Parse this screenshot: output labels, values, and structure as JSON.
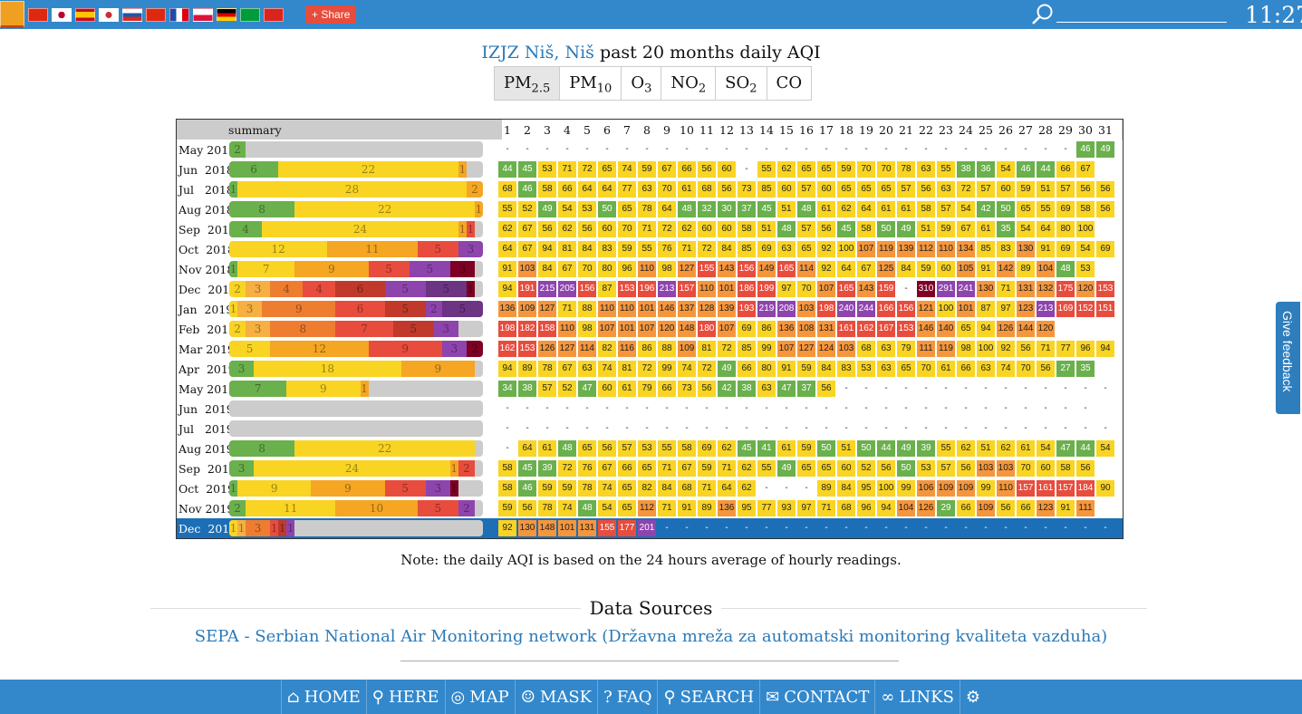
{
  "header": {
    "flags": [
      "home-flag",
      "china-flag",
      "japan-flag",
      "spain-flag",
      "korea-flag",
      "russia-flag",
      "hongkong-flag",
      "france-flag",
      "poland-flag",
      "germany-flag",
      "brazil-flag",
      "vietnam-flag"
    ],
    "share_label": "Share",
    "clock": "11:27"
  },
  "title": {
    "station": "IZJZ Niš, Niš",
    "suffix": " past 20 months daily AQI"
  },
  "pollutants": [
    {
      "base": "PM",
      "sub": "2.5"
    },
    {
      "base": "PM",
      "sub": "10"
    },
    {
      "base": "O",
      "sub": "3"
    },
    {
      "base": "NO",
      "sub": "2"
    },
    {
      "base": "SO",
      "sub": "2"
    },
    {
      "base": "CO",
      "sub": ""
    }
  ],
  "grid": {
    "summary_label": "summary",
    "days": [
      "1",
      "2",
      "3",
      "4",
      "5",
      "6",
      "7",
      "8",
      "9",
      "10",
      "11",
      "12",
      "13",
      "14",
      "15",
      "16",
      "17",
      "18",
      "19",
      "20",
      "21",
      "22",
      "23",
      "24",
      "25",
      "26",
      "27",
      "28",
      "29",
      "30",
      "31"
    ]
  },
  "colors": {
    "good": "#6ab04c",
    "moderate": "#f9d423",
    "usg": "#f5a623",
    "unhealthy": "#e84c3d",
    "very": "#8e44ad",
    "hazardous": "#7e0023"
  },
  "months": [
    {
      "label": "May 2018",
      "summary": [
        2
      ],
      "days": "- - - - - - - - - - - - - - - - - - - - - - - - - - - - - 46 49"
    },
    {
      "label": "Jun  2018",
      "summary": [
        6,
        22,
        1
      ],
      "days": "44 45 53 71 72 65 74 59 67 66 56 60 - 55 62 65 65 59 70 70 78 63 55 38 36 54 46 44 66 67"
    },
    {
      "label": "Jul   2018",
      "summary": [
        1,
        28,
        2
      ],
      "days": "68 46 58 66 64 64 77 63 70 61 68 56 73 85 60 57 60 65 65 65 57 56 63 72 57 60 59 51 57 56 56"
    },
    {
      "label": "Aug 2018",
      "summary": [
        8,
        22,
        1
      ],
      "days": "55 52 49 54 53 50 65 78 64 48 32 30 37 45 51 48 61 62 64 61 61 58 57 54 42 50 65 55 69 58 56"
    },
    {
      "label": "Sep  2018",
      "summary": [
        4,
        24,
        1,
        1
      ],
      "days": "62 67 56 62 56 60 70 71 72 62 60 60 58 51 48 57 56 45 58 50 49 51 59 67 61 35 54 64 80 100"
    },
    {
      "label": "Oct  2018",
      "summary": [
        0,
        12,
        11,
        5,
        3
      ],
      "days": "64 67 94 81 84 83 59 55 76 71 72 84 85 69 63 65 92 100 107 119 139 112 110 134 85 83 130 91 69 54 69"
    },
    {
      "label": "Nov 2018",
      "summary": [
        1,
        7,
        9,
        5,
        5,
        3
      ],
      "days": "91 103 84 67 70 80 96 110 98 127 155 143 156 149 165 114 92 64 67 125 84 59 60 105 91 142 89 104 48 53"
    },
    {
      "label": "Dec  2018",
      "summary": [
        0,
        2,
        3,
        4,
        4,
        6,
        5,
        5,
        1
      ],
      "days": "94 191 215 205 156 87 153 196 213 157 110 101 186 199 97 70 107 165 143 159 - 310 291 241 130 71 131 132 175 120 153"
    },
    {
      "label": "Jan  2019",
      "summary": [
        0,
        1,
        3,
        9,
        6,
        5,
        2,
        5
      ],
      "days": "136 109 127 71 88 110 110 101 146 137 128 139 193 219 208 103 198 240 244 166 156 121 100 101 87 97 123 213 169 152 151"
    },
    {
      "label": "Feb  2019",
      "summary": [
        0,
        2,
        3,
        8,
        7,
        5,
        3
      ],
      "days": "198 182 158 110 98 107 101 107 120 148 180 107 69 86 136 108 131 161 162 167 153 146 140 65 94 126 144 120"
    },
    {
      "label": "Mar 2019",
      "summary": [
        0,
        5,
        12,
        9,
        3,
        2
      ],
      "days": "162 153 126 127 114 82 116 86 88 109 81 72 85 99 107 127 124 103 68 63 79 111 119 98 100 92 56 71 77 96 94"
    },
    {
      "label": "Apr  2019",
      "summary": [
        3,
        18,
        9
      ],
      "days": "94 89 78 67 63 74 81 72 99 74 72 49 66 80 91 59 84 83 53 63 65 70 61 66 63 74 70 56 27 35"
    },
    {
      "label": "May 2019",
      "summary": [
        7,
        9,
        1
      ],
      "days": "34 38 57 52 47 60 61 79 66 73 56 42 38 63 47 37 56 - - - - - - - - - - - - - -"
    },
    {
      "label": "Jun  2019",
      "summary": [],
      "days": "- - - - - - - - - - - - - - - - - - - - - - - - - - - - - -"
    },
    {
      "label": "Jul   2019",
      "summary": [],
      "days": "- - - - - - - - - - - - - - - - - - - - - - - - - - - - - - -"
    },
    {
      "label": "Aug 2019",
      "summary": [
        8,
        22
      ],
      "days": "- 64 61 48 65 56 57 53 55 58 69 62 45 41 61 59 50 51 50 44 49 39 55 62 51 62 61 54 47 44 54"
    },
    {
      "label": "Sep  2019",
      "summary": [
        3,
        24,
        1,
        2
      ],
      "days": "58 45 39 72 76 67 66 65 71 67 59 71 62 55 49 65 65 60 52 56 50 53 57 56 103 103 70 60 58 56"
    },
    {
      "label": "Oct  2019",
      "summary": [
        1,
        9,
        9,
        5,
        3,
        1
      ],
      "days": "58 46 59 59 78 74 65 82 84 68 71 64 62 - - - 89 84 95 100 99 106 109 109 99 110 157 161 157 184 90"
    },
    {
      "label": "Nov 2019",
      "summary": [
        2,
        11,
        10,
        5,
        2
      ],
      "days": "59 56 78 74 48 54 65 112 71 91 89 136 95 77 93 97 71 68 96 94 104 126 29 66 109 56 66 123 91 111"
    },
    {
      "label": "Dec  2019",
      "summary": [
        0,
        1,
        1,
        3,
        1,
        1,
        1
      ],
      "days": "92 130 148 101 131 155 177 201 - - - - - - - - - - - - - - - - - - - - - - -"
    }
  ],
  "note": "Note: the daily AQI is based on the 24 hours average of hourly readings.",
  "data_sources": {
    "heading": "Data Sources",
    "source": "SEPA - Serbian National Air Monitoring network (Državna mreža za automatski monitoring kvaliteta vazduha)"
  },
  "feedback": "Give feedback",
  "nav": [
    {
      "icon": "home-icon",
      "label": "HOME"
    },
    {
      "icon": "location-pin-icon",
      "label": "HERE"
    },
    {
      "icon": "map-icon",
      "label": "MAP"
    },
    {
      "icon": "mask-icon",
      "label": "MASK"
    },
    {
      "icon": "faq-icon",
      "label": "FAQ"
    },
    {
      "icon": "search-icon",
      "label": "SEARCH"
    },
    {
      "icon": "contact-icon",
      "label": "CONTACT"
    },
    {
      "icon": "link-icon",
      "label": "LINKS"
    },
    {
      "icon": "gear-icon",
      "label": ""
    }
  ]
}
